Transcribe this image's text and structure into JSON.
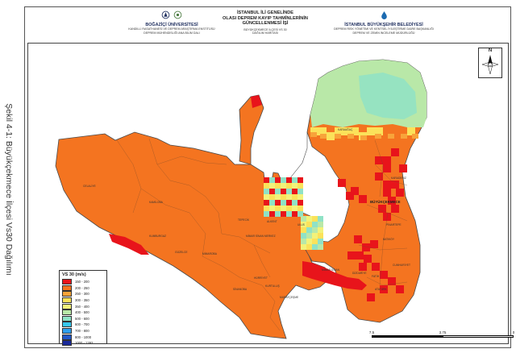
{
  "caption": "Şekil 4-1: Büyükçekmece İlçesi V<sub>s30</sub> Dağılımı",
  "caption_text": "Şekil 4-1: Büyükçekmece İlçesi Vs30 Dağılımı",
  "header": {
    "left": {
      "title": "BOĞAZİÇİ ÜNİVERSİTESİ",
      "line1": "KANDİLLİ RASATHANESİ VE DEPREM ARAŞTIRMA ENSTİTÜSÜ",
      "line2": "DEPREM MÜHENDİSLİĞİ ANA BİLİM DALI"
    },
    "center": {
      "line1": "İSTANBUL İLİ GENELİNDE",
      "line2": "OLASI DEPREM KAYIP TAHMİNLERİNİN",
      "line3": "GÜNCELLENMESİ İŞİ",
      "sub1": "BÜYÜKÇEKMECE İLÇESİ VS 30",
      "sub2": "DAĞILIM HARİTASI"
    },
    "right": {
      "title": "İSTANBUL BÜYÜKŞEHİR BELEDİYESİ",
      "line1": "DEPREM RİSK YÖNETİMİ VE KENTSEL İYİLEŞTİRME DAİRE BAŞKANLIĞI",
      "line2": "DEPREM VE ZEMİN İNCELEME MÜDÜRLÜĞÜ"
    }
  },
  "north_label": "N",
  "legend": {
    "title": "VS 30 (m/s)",
    "items": [
      {
        "label": "150 - 200",
        "color": "#e8141b"
      },
      {
        "label": "200 - 250",
        "color": "#f47420"
      },
      {
        "label": "250 - 300",
        "color": "#f8a43a"
      },
      {
        "label": "300 - 350",
        "color": "#fbe25a"
      },
      {
        "label": "350 - 400",
        "color": "#f2f27a"
      },
      {
        "label": "400 - 500",
        "color": "#b9e8a8"
      },
      {
        "label": "500 - 600",
        "color": "#8fe2c6"
      },
      {
        "label": "600 - 700",
        "color": "#38c8ef"
      },
      {
        "label": "700 - 800",
        "color": "#2ea0ef"
      },
      {
        "label": "800 - 1000",
        "color": "#2258c8"
      },
      {
        "label": "1000 - 1392",
        "color": "#1a2a9a"
      }
    ]
  },
  "scale": {
    "left": "7.5",
    "mid": "3.75",
    "right": "0",
    "unit": "Km"
  },
  "place_labels": {
    "karacag": "KARAAĞAÇ",
    "buyukcekmece": "BÜYÜKÇEKMECE",
    "alkent": "ALKENT",
    "ulus": "ULUS",
    "mimarsinan": "MİMAR SİNAN",
    "kumburgaz": "KUMBURGAZ",
    "tepecik": "TEPECİK",
    "guzelce": "GÜZELCE",
    "celaliye": "CELALİYE",
    "kamiloba": "KAMİLOBA",
    "mimar_merkez": "MİMAR SİNAN MERKEZ",
    "hurriyet": "HÜRRİYET",
    "muratcesme": "MURATÇEŞME",
    "sinanoba": "SİNANOBA",
    "batiköy": "BATIKÖY",
    "atatürk": "ATATÜRK",
    "dizdariye": "DİZDARİYE",
    "fatih": "FATİH",
    "cumhuriyet": "CUMHURİYET",
    "pinartepe": "PINARTEPE",
    "kurtulus": "KURTULUŞ",
    "karadeniz": "KARADENİZ",
    "mimaroba": "MİMAROBA"
  },
  "colors": {
    "base_orange": "#f47420",
    "red": "#e8141b",
    "green": "#b9e8a8",
    "teal": "#8fe2c6",
    "yellow": "#fbe25a",
    "lake": "#ffffff",
    "outline": "#4a4a4a"
  }
}
